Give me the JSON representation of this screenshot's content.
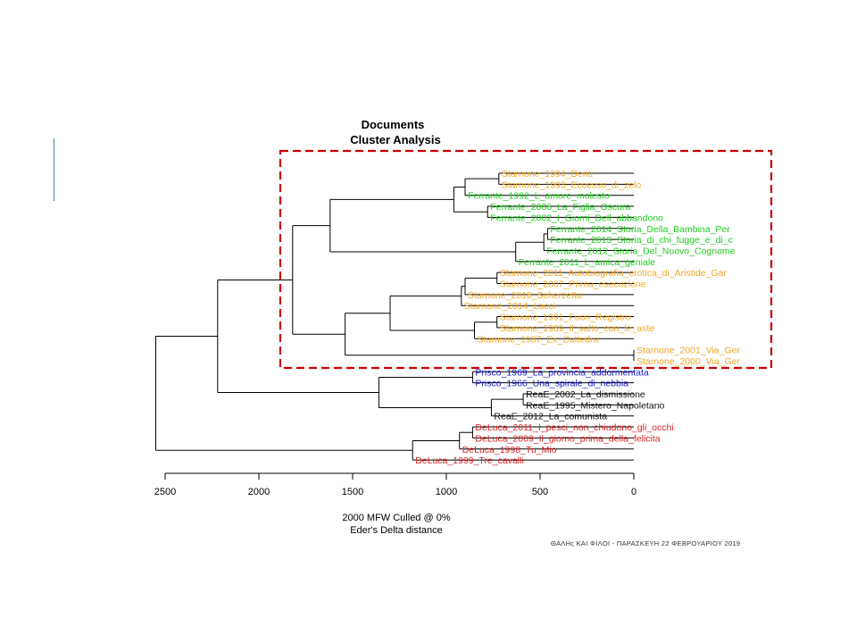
{
  "chart_data": {
    "type": "dendrogram",
    "title": [
      "Documents",
      "Cluster Analysis"
    ],
    "xlabel": [
      "2000 MFW  Culled @ 0%",
      "Eder's Delta distance"
    ],
    "xlim": [
      2500,
      0
    ],
    "ticks": [
      2500,
      2000,
      1500,
      1000,
      500,
      0
    ],
    "leaves": [
      {
        "label": "Starnone_1994_Denti",
        "color": "#f5a623"
      },
      {
        "label": "Starnone_1993_Eccesso_di_zelo",
        "color": "#f5a623"
      },
      {
        "label": "Ferrante_1992_L_amore_molesto",
        "color": "#22cc22"
      },
      {
        "label": "Ferrante_2006_La_Figlia_Oscura",
        "color": "#22cc22"
      },
      {
        "label": "Ferrante_2002_I_Giorni_Dell_abbandono",
        "color": "#22cc22"
      },
      {
        "label": "Ferrante_2014_Storia_Della_Bambina_Per",
        "color": "#22cc22"
      },
      {
        "label": "Ferrante_2013_Storia_di_chi_fugge_e_di_c",
        "color": "#22cc22"
      },
      {
        "label": "Ferrante_2012_Storia_Del_Nuovo_Cognome",
        "color": "#22cc22"
      },
      {
        "label": "Ferrante_2011_L_amica_geniale",
        "color": "#22cc22"
      },
      {
        "label": "Starnone_2011_Autobiografia_erotica_di_Aristide_Gar",
        "color": "#f5a623"
      },
      {
        "label": "Starnone_2007_Prima_esecuzione",
        "color": "#f5a623"
      },
      {
        "label": "Starnone_2016_Scherzetto",
        "color": "#f5a623"
      },
      {
        "label": "Starnone_2014_Lacci",
        "color": "#f5a623"
      },
      {
        "label": "Starnone_1991_Fuori_Registro",
        "color": "#f5a623"
      },
      {
        "label": "Starnone_1989_Il_salto_con_le_aste",
        "color": "#f5a623"
      },
      {
        "label": "Starnone_1987_Ex_Cattedra",
        "color": "#f5a623"
      },
      {
        "label": "Starnone_2001_Via_Ger",
        "color": "#f5a623"
      },
      {
        "label": "Starnone_2000_Via_Ger",
        "color": "#f5a623"
      },
      {
        "label": "Prisco_1969_La_provincia_addormentata",
        "color": "#1a1acc"
      },
      {
        "label": "Prisco_1966_Una_spirale_di_nebbia",
        "color": "#1a1acc"
      },
      {
        "label": "ReaE_2002_La_dismissione",
        "color": "#111111"
      },
      {
        "label": "ReaE_1995_Mistero_Napoletano",
        "color": "#111111"
      },
      {
        "label": "ReaE_2012_La_comunista",
        "color": "#111111"
      },
      {
        "label": "DeLuca_2011_I_pesci_non_chiudono_gli_occhi",
        "color": "#dd2222"
      },
      {
        "label": "DeLuca_2009_Il_giorno_prima_della_felicita",
        "color": "#dd2222"
      },
      {
        "label": "DeLuca_1998_Tu_Mio",
        "color": "#dd2222"
      },
      {
        "label": "DeLuca_1999_Tre_cavalli",
        "color": "#dd2222"
      }
    ],
    "merges": [
      {
        "id": "m1",
        "children": [
          0,
          1
        ],
        "height": 720
      },
      {
        "id": "m2",
        "children": [
          "m1",
          2
        ],
        "height": 900
      },
      {
        "id": "m3",
        "children": [
          3,
          4
        ],
        "height": 780
      },
      {
        "id": "m4",
        "children": [
          "m2",
          "m3"
        ],
        "height": 960
      },
      {
        "id": "m5",
        "children": [
          5,
          6
        ],
        "height": 460
      },
      {
        "id": "m6",
        "children": [
          "m5",
          7
        ],
        "height": 480
      },
      {
        "id": "m7",
        "children": [
          "m6",
          8
        ],
        "height": 630
      },
      {
        "id": "m8",
        "children": [
          "m4",
          "m7"
        ],
        "height": 1620
      },
      {
        "id": "m9",
        "children": [
          9,
          10
        ],
        "height": 730
      },
      {
        "id": "m10",
        "children": [
          "m9",
          11
        ],
        "height": 900
      },
      {
        "id": "m11",
        "children": [
          "m10",
          12
        ],
        "height": 920
      },
      {
        "id": "m12",
        "children": [
          13,
          14
        ],
        "height": 730
      },
      {
        "id": "m13",
        "children": [
          "m12",
          15
        ],
        "height": 850
      },
      {
        "id": "m14",
        "children": [
          "m11",
          "m13"
        ],
        "height": 1300
      },
      {
        "id": "m15",
        "children": [
          16,
          17
        ],
        "height": 0
      },
      {
        "id": "m16",
        "children": [
          "m14",
          "m15"
        ],
        "height": 1540
      },
      {
        "id": "m17",
        "children": [
          "m8",
          "m16"
        ],
        "height": 1820
      },
      {
        "id": "m18",
        "children": [
          18,
          19
        ],
        "height": 860
      },
      {
        "id": "m19",
        "children": [
          20,
          21
        ],
        "height": 590
      },
      {
        "id": "m20",
        "children": [
          "m19",
          22
        ],
        "height": 760
      },
      {
        "id": "m21",
        "children": [
          "m18",
          "m20"
        ],
        "height": 1360
      },
      {
        "id": "m22",
        "children": [
          "m17",
          "m21"
        ],
        "height": 2220
      },
      {
        "id": "m23",
        "children": [
          23,
          24
        ],
        "height": 860
      },
      {
        "id": "m24",
        "children": [
          "m23",
          25
        ],
        "height": 930
      },
      {
        "id": "m25",
        "children": [
          "m24",
          26
        ],
        "height": 1180
      },
      {
        "id": "m26",
        "children": [
          "m22",
          "m25"
        ],
        "height": 2550
      }
    ],
    "highlight_box": {
      "color": "#cc0000",
      "style": "dashed",
      "leaves": [
        0,
        17
      ]
    }
  },
  "footer": "ΘΑΛΗς ΚΑΙ ΦΙΛΟΙ - ΠΑΡΑΣΚΕΥΗ 22 ΦΕΒΡΟΥΑΡΙΟΥ 2019"
}
